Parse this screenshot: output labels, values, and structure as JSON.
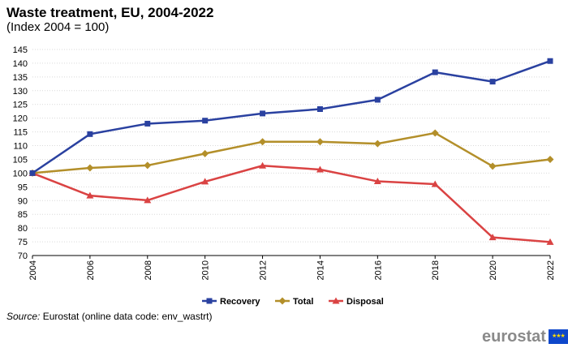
{
  "title": "Waste treatment, EU, 2004-2022",
  "subtitle": "(Index 2004 = 100)",
  "source_label": "Source:",
  "source_text": "Eurostat (online data code: env_wastrt)",
  "logo_text": "eurostat",
  "chart_data": {
    "type": "line",
    "title": "Waste treatment, EU, 2004-2022",
    "subtitle": "(Index 2004 = 100)",
    "x": [
      "2004",
      "2006",
      "2008",
      "2010",
      "2012",
      "2014",
      "2016",
      "2018",
      "2020",
      "2022"
    ],
    "ylim": [
      70,
      145
    ],
    "yticks": [
      70,
      75,
      80,
      85,
      90,
      95,
      100,
      105,
      110,
      115,
      120,
      125,
      130,
      135,
      140,
      145
    ],
    "grid": true,
    "legend_position": "bottom",
    "series": [
      {
        "name": "Recovery",
        "color": "#2a41a0",
        "marker": "square",
        "values": [
          100,
          114.2,
          118.0,
          119.1,
          121.7,
          123.3,
          126.7,
          136.7,
          133.3,
          140.8
        ]
      },
      {
        "name": "Total",
        "color": "#b38f2a",
        "marker": "diamond",
        "values": [
          100,
          101.9,
          102.8,
          107.1,
          111.4,
          111.4,
          110.7,
          114.6,
          102.5,
          105.0
        ]
      },
      {
        "name": "Disposal",
        "color": "#da4343",
        "marker": "triangle",
        "values": [
          100,
          91.8,
          90.1,
          96.9,
          102.7,
          101.3,
          97.0,
          96.0,
          76.6,
          74.9
        ]
      }
    ]
  }
}
